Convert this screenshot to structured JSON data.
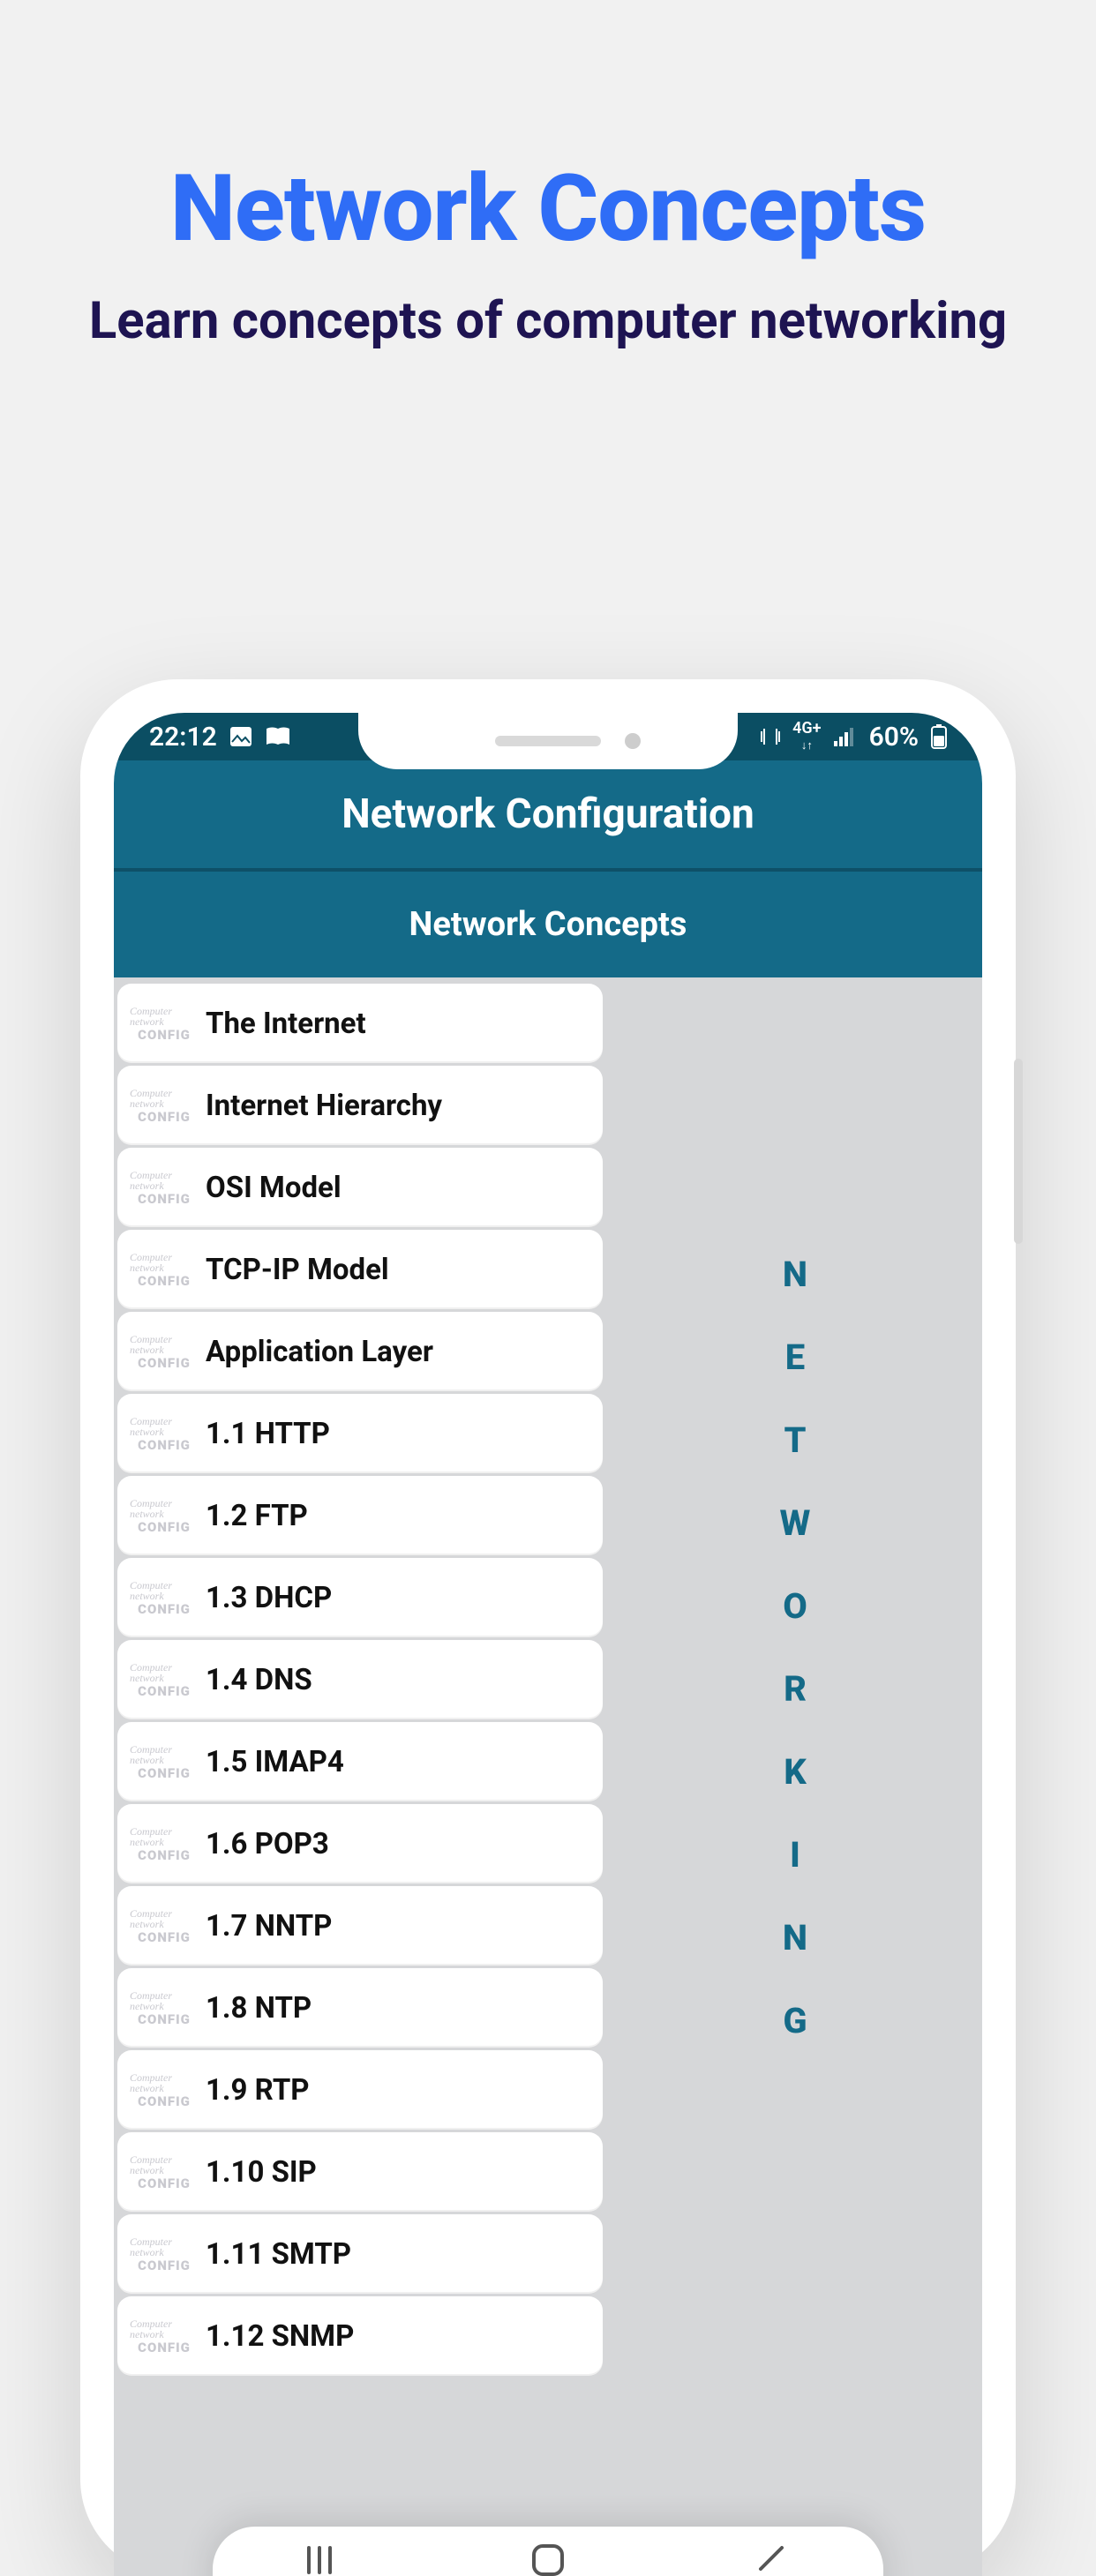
{
  "colors": {
    "page_bg": "#f1f1f1",
    "promo_title": "#2f6df6",
    "promo_sub": "#1e1452",
    "header_bg": "#146a88",
    "header_divider": "#0e5068",
    "statusbar_bg": "#0b4e63",
    "body_bg": "#d6d7d9",
    "item_bg": "#ffffff",
    "item_text": "#111111",
    "side_text": "#146a88"
  },
  "promo": {
    "title": "Network Concepts",
    "subtitle": "Learn concepts of computer networking"
  },
  "statusbar": {
    "time": "22:12",
    "net_label": "4G+",
    "battery_pct": "60%"
  },
  "app": {
    "header_title": "Network Configuration",
    "section_title": "Network Concepts",
    "side_word": "NETWORKING",
    "thumb_line1": "Computer network",
    "thumb_line2": "CONFIG"
  },
  "list": [
    {
      "label": "The Internet"
    },
    {
      "label": "Internet Hierarchy"
    },
    {
      "label": "OSI Model"
    },
    {
      "label": "TCP-IP Model"
    },
    {
      "label": "Application Layer"
    },
    {
      "label": "1.1 HTTP"
    },
    {
      "label": "1.2 FTP"
    },
    {
      "label": "1.3 DHCP"
    },
    {
      "label": "1.4 DNS"
    },
    {
      "label": "1.5 IMAP4"
    },
    {
      "label": "1.6 POP3"
    },
    {
      "label": "1.7 NNTP"
    },
    {
      "label": "1.8 NTP"
    },
    {
      "label": "1.9 RTP"
    },
    {
      "label": "1.10 SIP"
    },
    {
      "label": "1.11 SMTP"
    },
    {
      "label": "1.12 SNMP"
    }
  ]
}
